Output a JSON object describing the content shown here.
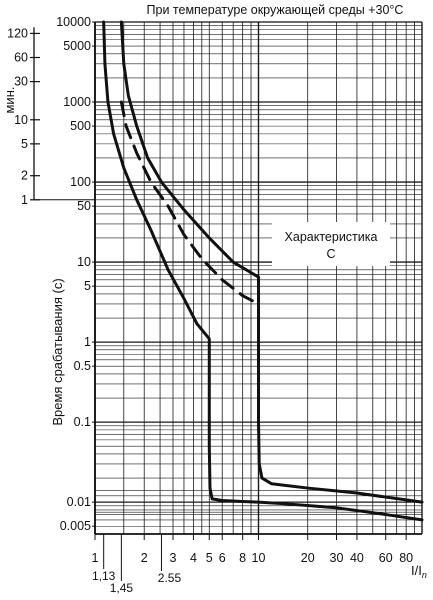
{
  "chart_data": {
    "type": "line",
    "title": "При температуре окружающей среды +30°C",
    "xlabel": "I/In",
    "ylabel": "Время срабатывания (с)",
    "minutes_label": "мин.",
    "annotation": [
      "Характеристика",
      "С"
    ],
    "x_scale": "log",
    "y_scale": "log",
    "xlim": [
      1,
      100
    ],
    "ylim": [
      0.004,
      10000
    ],
    "grid": true,
    "x_ticks": [
      {
        "value": 1,
        "label": "1"
      },
      {
        "value": 2,
        "label": "2"
      },
      {
        "value": 3,
        "label": "3"
      },
      {
        "value": 4,
        "label": "4"
      },
      {
        "value": 5,
        "label": "5"
      },
      {
        "value": 6,
        "label": "6"
      },
      {
        "value": 8,
        "label": "8"
      },
      {
        "value": 10,
        "label": "10"
      },
      {
        "value": 20,
        "label": "20"
      },
      {
        "value": 30,
        "label": "30"
      },
      {
        "value": 40,
        "label": "40"
      },
      {
        "value": 60,
        "label": "60"
      },
      {
        "value": 80,
        "label": "80"
      }
    ],
    "x_ticks_lower": [
      {
        "value": 1.13,
        "label": "1,13"
      },
      {
        "value": 1.45,
        "label": "1,45"
      },
      {
        "value": 2.55,
        "label": "2.55"
      }
    ],
    "y_ticks": [
      {
        "value": 10000,
        "label": "10000"
      },
      {
        "value": 5000,
        "label": "5000"
      },
      {
        "value": 1000,
        "label": "1000"
      },
      {
        "value": 500,
        "label": "500"
      },
      {
        "value": 100,
        "label": "100"
      },
      {
        "value": 50,
        "label": "50"
      },
      {
        "value": 10,
        "label": "10"
      },
      {
        "value": 5,
        "label": "5"
      },
      {
        "value": 1,
        "label": "1"
      },
      {
        "value": 0.5,
        "label": "0.5"
      },
      {
        "value": 0.1,
        "label": "0.1"
      },
      {
        "value": 0.01,
        "label": "0.01"
      },
      {
        "value": 0.005,
        "label": "0.005"
      }
    ],
    "minute_ticks": [
      {
        "minutes": 120,
        "label": "120"
      },
      {
        "minutes": 60,
        "label": "60"
      },
      {
        "minutes": 30,
        "label": "30"
      },
      {
        "minutes": 10,
        "label": "10"
      },
      {
        "minutes": 5,
        "label": "5"
      },
      {
        "minutes": 2,
        "label": "2"
      },
      {
        "minutes": 1,
        "label": "1"
      }
    ],
    "series": [
      {
        "style": "solid",
        "x": [
          1.13,
          1.15,
          1.2,
          1.3,
          1.5,
          1.8,
          2.2,
          2.8,
          3.5,
          4.2,
          5,
          5,
          5.05,
          5.2,
          6,
          8,
          10,
          15,
          30,
          60,
          100
        ],
        "y": [
          10000,
          3000,
          1000,
          400,
          150,
          60,
          25,
          8,
          3.5,
          1.7,
          1.1,
          0.05,
          0.015,
          0.011,
          0.0105,
          0.0102,
          0.01,
          0.0095,
          0.0085,
          0.007,
          0.006
        ]
      },
      {
        "style": "solid",
        "x": [
          1.45,
          1.5,
          1.6,
          1.8,
          2.1,
          2.55,
          3.5,
          5,
          7,
          10,
          10,
          10.1,
          10.5,
          12,
          20,
          40,
          100
        ],
        "y": [
          10000,
          3000,
          1200,
          500,
          200,
          100,
          45,
          20,
          10,
          6.5,
          0.1,
          0.03,
          0.02,
          0.017,
          0.015,
          0.013,
          0.01
        ]
      },
      {
        "style": "dashed",
        "x": [
          1.45,
          1.55,
          1.8,
          2.2,
          2.8,
          3.5,
          4.5,
          6,
          8,
          10
        ],
        "y": [
          1000,
          500,
          230,
          100,
          50,
          22,
          11,
          6,
          3.8,
          3
        ]
      }
    ]
  }
}
